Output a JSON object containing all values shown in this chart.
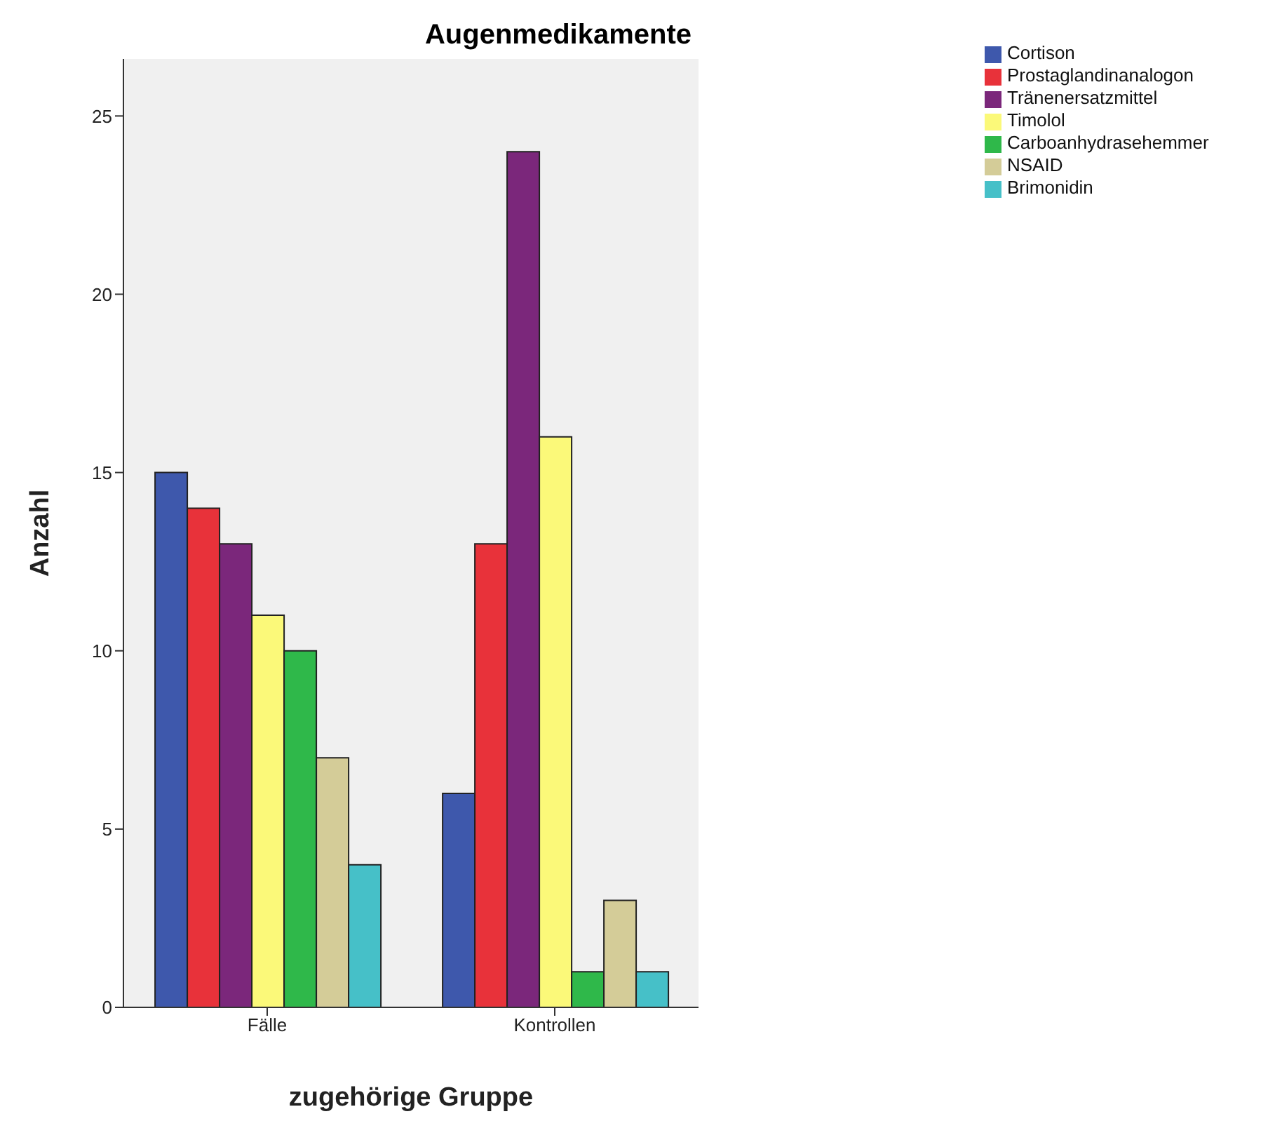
{
  "chart_data": {
    "type": "bar",
    "title": "Augenmedikamente",
    "xlabel": "zugehörige Gruppe",
    "ylabel": "Anzahl",
    "categories": [
      "Fälle",
      "Kontrollen"
    ],
    "series": [
      {
        "name": "Cortison",
        "color": "#3e58ac",
        "values": [
          15,
          6
        ]
      },
      {
        "name": "Prostaglandinanalogon",
        "color": "#e8323a",
        "values": [
          14,
          13
        ]
      },
      {
        "name": "Tränenersatzmittel",
        "color": "#7b277b",
        "values": [
          13,
          24
        ]
      },
      {
        "name": "Timolol",
        "color": "#fbf979",
        "values": [
          11,
          16
        ]
      },
      {
        "name": "Carboanhydrasehemmer",
        "color": "#2fb84a",
        "values": [
          10,
          1
        ]
      },
      {
        "name": "NSAID",
        "color": "#d4cc98",
        "values": [
          7,
          3
        ]
      },
      {
        "name": "Brimonidin",
        "color": "#46c0c8",
        "values": [
          4,
          1
        ]
      }
    ],
    "ylim": [
      0,
      26.6
    ],
    "yticks": [
      0,
      5,
      10,
      15,
      20,
      25
    ],
    "legend": "top right"
  }
}
